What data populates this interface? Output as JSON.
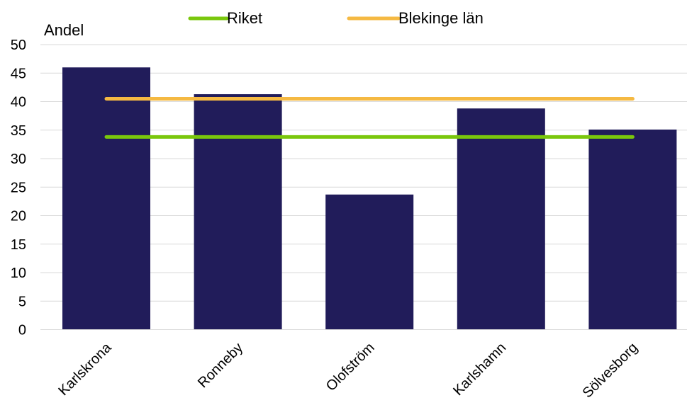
{
  "chart_data": {
    "type": "bar",
    "ylabel": "Andel",
    "categories": [
      "Karlskrona",
      "Ronneby",
      "Olofström",
      "Karlshamn",
      "Sölvesborg"
    ],
    "series": [
      {
        "name": "",
        "type": "bar",
        "values": [
          46.0,
          41.3,
          23.7,
          38.8,
          35.1
        ],
        "color": "#211c5a"
      },
      {
        "name": "Riket",
        "type": "line",
        "values": [
          33.8,
          33.8,
          33.8,
          33.8,
          33.8
        ],
        "color": "#7ac70c"
      },
      {
        "name": "Blekinge län",
        "type": "line",
        "values": [
          40.5,
          40.5,
          40.5,
          40.5,
          40.5
        ],
        "color": "#f5b942"
      }
    ],
    "ylim": [
      0,
      50
    ],
    "yticks": [
      0,
      5,
      10,
      15,
      20,
      25,
      30,
      35,
      40,
      45,
      50
    ],
    "grid": true,
    "legend": "top"
  }
}
